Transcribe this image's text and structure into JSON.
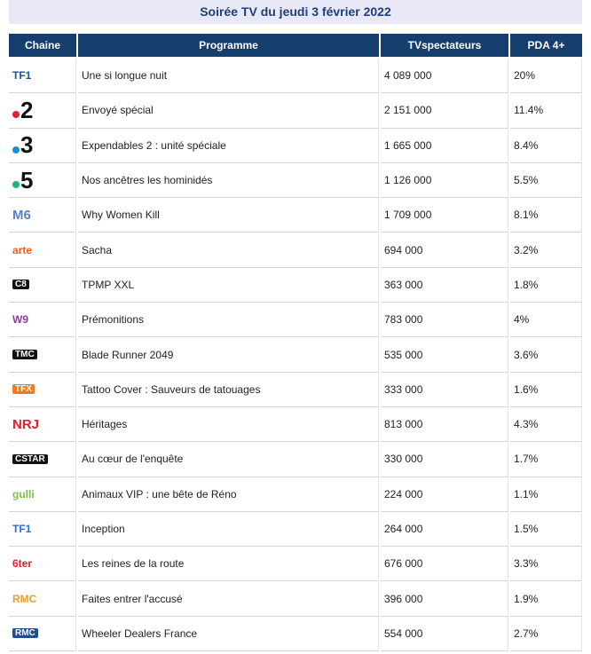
{
  "title": "Soirée TV du jeudi 3 février 2022",
  "table": {
    "headers": [
      "Chaine",
      "Programme",
      "TVspectateurs",
      "PDA 4+"
    ],
    "rows": [
      {
        "logo": "TF1",
        "logo_color": "#1f4fa8",
        "program": "Une si longue nuit",
        "viewers": "4 089 000",
        "share": "20%"
      },
      {
        "logo": "2",
        "logo_color": "#e2202c",
        "program": "Envoyé spécial",
        "viewers": "2 151 000",
        "share": "11.4%"
      },
      {
        "logo": "3",
        "logo_color": "#1b8fd6",
        "program": "Expendables 2 : unité spéciale",
        "viewers": "1 665 000",
        "share": "8.4%"
      },
      {
        "logo": "5",
        "logo_color": "#19b87a",
        "program": "Nos ancêtres les hominidés",
        "viewers": "1 126 000",
        "share": "5.5%"
      },
      {
        "logo": "M6",
        "logo_color": "#5a7fc4",
        "program": "Why Women Kill",
        "viewers": "1 709 000",
        "share": "8.1%"
      },
      {
        "logo": "arte",
        "logo_color": "#f05a1e",
        "program": "Sacha",
        "viewers": "694 000",
        "share": "3.2%"
      },
      {
        "logo": "C8",
        "logo_color": "#111111",
        "program": "TPMP XXL",
        "viewers": "363 000",
        "share": "1.8%"
      },
      {
        "logo": "W9",
        "logo_color": "#8e3a9a",
        "program": "Prémonitions",
        "viewers": "783 000",
        "share": "4%"
      },
      {
        "logo": "TMC",
        "logo_color": "#111111",
        "program": "Blade Runner 2049",
        "viewers": "535 000",
        "share": "3.6%"
      },
      {
        "logo": "TFX",
        "logo_color": "#f07a1e",
        "program": "Tattoo Cover : Sauveurs de tatouages",
        "viewers": "333 000",
        "share": "1.6%"
      },
      {
        "logo": "NRJ",
        "logo_color": "#e2202c",
        "program": "Héritages",
        "viewers": "813 000",
        "share": "4.3%"
      },
      {
        "logo": "CSTAR",
        "logo_color": "#111111",
        "program": "Au cœur de l'enquête",
        "viewers": "330 000",
        "share": "1.7%"
      },
      {
        "logo": "gulli",
        "logo_color": "#7cc242",
        "program": "Animaux VIP : une bête de Réno",
        "viewers": "224 000",
        "share": "1.1%"
      },
      {
        "logo": "TF1",
        "logo_color": "#2f6fd0",
        "program": "Inception",
        "viewers": "264 000",
        "share": "1.5%"
      },
      {
        "logo": "6ter",
        "logo_color": "#e2202c",
        "program": "Les reines de la route",
        "viewers": "676 000",
        "share": "3.3%"
      },
      {
        "logo": "RMC",
        "logo_color": "#f0a01e",
        "program": "Faites entrer l'accusé",
        "viewers": "396 000",
        "share": "1.9%"
      },
      {
        "logo": "RMC",
        "logo_color": "#1f4f8a",
        "program": "Wheeler Dealers France",
        "viewers": "554 000",
        "share": "2.7%"
      }
    ]
  }
}
